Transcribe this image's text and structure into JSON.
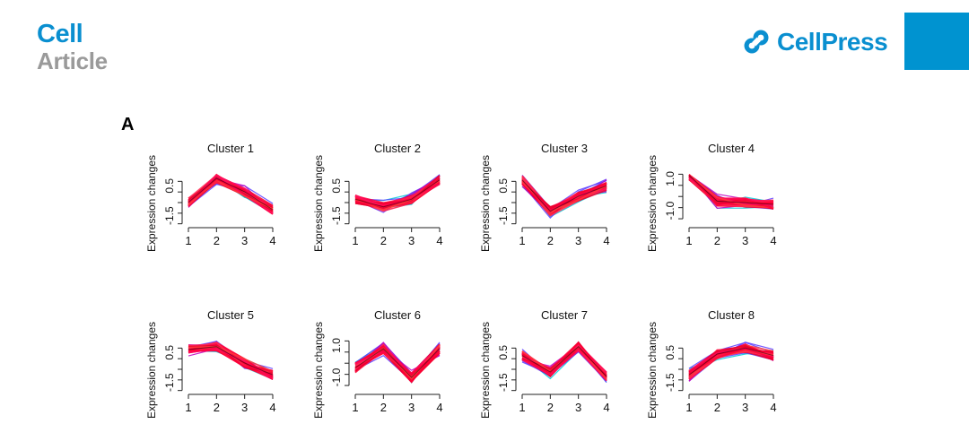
{
  "header": {
    "journal_name": "Cell",
    "article_type": "Article",
    "publisher": "CellPress",
    "publisher_icon": "cellpress-logo-icon",
    "brand_color": "#0a8fd0",
    "corner_color": "#0093d0"
  },
  "figure": {
    "panel_label": "A"
  },
  "chart_data": [
    {
      "type": "line",
      "title": "Cluster 1",
      "ylabel": "Expression changes",
      "x": [
        1,
        2,
        3,
        4
      ],
      "ylim": [
        -1.7,
        1.3
      ],
      "yticks": [
        -1.5,
        0.5
      ],
      "ytick_labels": [
        "-1.5",
        "0.5"
      ],
      "profile": [
        -0.6,
        1.0,
        0.1,
        -1.1
      ]
    },
    {
      "type": "line",
      "title": "Cluster 2",
      "ylabel": "Expression changes",
      "x": [
        1,
        2,
        3,
        4
      ],
      "ylim": [
        -1.7,
        1.3
      ],
      "yticks": [
        -1.5,
        0.5
      ],
      "ytick_labels": [
        "-1.5",
        "0.5"
      ],
      "profile": [
        -0.4,
        -0.9,
        -0.4,
        0.9
      ]
    },
    {
      "type": "line",
      "title": "Cluster 3",
      "ylabel": "Expression changes",
      "x": [
        1,
        2,
        3,
        4
      ],
      "ylim": [
        -1.7,
        1.3
      ],
      "yticks": [
        -1.5,
        0.5
      ],
      "ytick_labels": [
        "-1.5",
        "0.5"
      ],
      "profile": [
        0.9,
        -1.2,
        -0.2,
        0.5
      ]
    },
    {
      "type": "line",
      "title": "Cluster 4",
      "ylabel": "Expression changes",
      "x": [
        1,
        2,
        3,
        4
      ],
      "ylim": [
        -1.5,
        1.3
      ],
      "yticks": [
        -1.0,
        1.0
      ],
      "ytick_labels": [
        "-1.0",
        "1.0"
      ],
      "profile": [
        1.2,
        -0.4,
        -0.5,
        -0.6
      ]
    },
    {
      "type": "line",
      "title": "Cluster 5",
      "ylabel": "Expression changes",
      "x": [
        1,
        2,
        3,
        4
      ],
      "ylim": [
        -1.7,
        1.3
      ],
      "yticks": [
        -1.5,
        0.5
      ],
      "ytick_labels": [
        "-1.5",
        "0.5"
      ],
      "profile": [
        0.7,
        0.9,
        -0.2,
        -1.0
      ]
    },
    {
      "type": "line",
      "title": "Cluster 6",
      "ylabel": "Expression changes",
      "x": [
        1,
        2,
        3,
        4
      ],
      "ylim": [
        -1.5,
        1.3
      ],
      "yticks": [
        -1.0,
        1.0
      ],
      "ytick_labels": [
        "-1.0",
        "1.0"
      ],
      "profile": [
        -0.4,
        0.8,
        -1.0,
        0.8
      ]
    },
    {
      "type": "line",
      "title": "Cluster 7",
      "ylabel": "Expression changes",
      "x": [
        1,
        2,
        3,
        4
      ],
      "ylim": [
        -1.7,
        1.3
      ],
      "yticks": [
        -1.5,
        0.5
      ],
      "ytick_labels": [
        "-1.5",
        "0.5"
      ],
      "profile": [
        0.3,
        -0.8,
        0.9,
        -1.1
      ]
    },
    {
      "type": "line",
      "title": "Cluster 8",
      "ylabel": "Expression changes",
      "x": [
        1,
        2,
        3,
        4
      ],
      "ylim": [
        -1.7,
        1.3
      ],
      "yticks": [
        -1.5,
        0.5
      ],
      "ytick_labels": [
        "-1.5",
        "0.5"
      ],
      "profile": [
        -1.0,
        0.4,
        0.8,
        0.3
      ]
    }
  ]
}
